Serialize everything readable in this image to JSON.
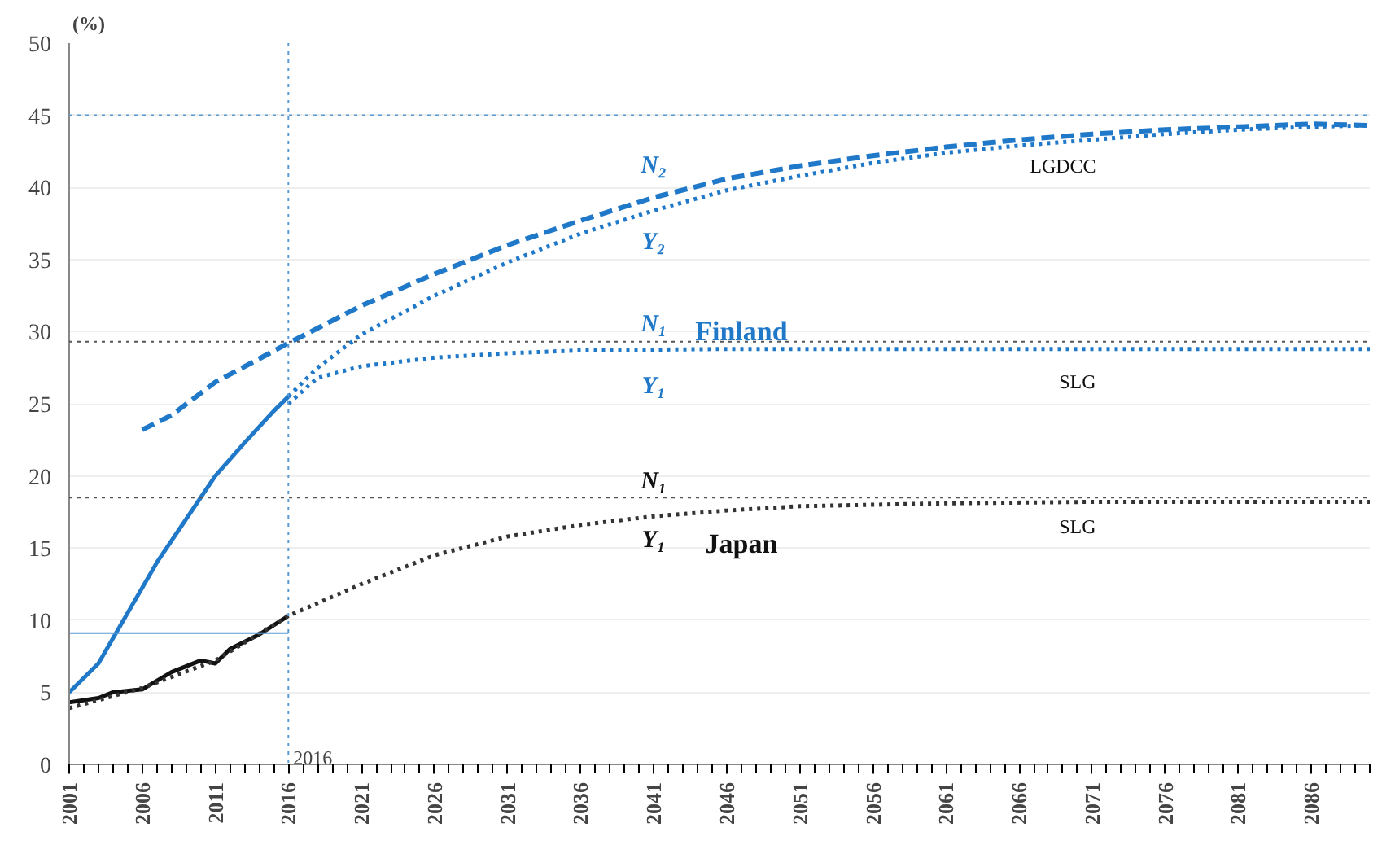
{
  "chart_data": {
    "type": "line",
    "ylabel": "(%)",
    "xlim": [
      2001,
      2090
    ],
    "ylim": [
      0,
      50
    ],
    "xticks": [
      2001,
      2006,
      2011,
      2016,
      2021,
      2026,
      2031,
      2036,
      2041,
      2046,
      2051,
      2056,
      2061,
      2066,
      2071,
      2076,
      2081,
      2086
    ],
    "yticks": [
      0,
      5,
      10,
      15,
      20,
      25,
      30,
      35,
      40,
      45,
      50
    ],
    "grid": "y",
    "series": [
      {
        "color": "#1f78c8",
        "line_style": "solid",
        "x": [
          2001,
          2003,
          2005,
          2007,
          2009,
          2011,
          2013,
          2015,
          2016
        ],
        "values": [
          5.0,
          7.0,
          10.5,
          14.0,
          17.0,
          20.0,
          22.3,
          24.5,
          25.5
        ]
      },
      {
        "color": "#1f78c8",
        "line_style": "dashed",
        "x": [
          2006,
          2008,
          2011,
          2016,
          2021,
          2026,
          2031,
          2036,
          2041,
          2046,
          2051,
          2056,
          2061,
          2066,
          2071,
          2076,
          2081,
          2086,
          2090
        ],
        "values": [
          23.2,
          24.2,
          26.5,
          29.2,
          31.8,
          34.0,
          36.0,
          37.7,
          39.3,
          40.6,
          41.5,
          42.2,
          42.8,
          43.3,
          43.7,
          44.0,
          44.2,
          44.4,
          44.3
        ]
      },
      {
        "color": "#1f78c8",
        "line_style": "dotted",
        "x": [
          2016,
          2018,
          2021,
          2026,
          2031,
          2036,
          2041,
          2046,
          2051,
          2056,
          2061,
          2066,
          2071,
          2076,
          2081,
          2086,
          2090
        ],
        "values": [
          25.5,
          27.5,
          29.8,
          32.5,
          34.8,
          36.8,
          38.4,
          39.8,
          40.8,
          41.7,
          42.4,
          42.9,
          43.3,
          43.7,
          44.0,
          44.2,
          44.3
        ]
      },
      {
        "color": "#1f78c8",
        "line_style": "dotted",
        "x": [
          2016,
          2018,
          2021,
          2026,
          2031,
          2036,
          2046,
          2090
        ],
        "values": [
          25.0,
          26.8,
          27.6,
          28.2,
          28.5,
          28.7,
          28.8,
          28.8
        ]
      },
      {
        "color": "#111111",
        "line_style": "solid",
        "x": [
          2001,
          2003,
          2004,
          2006,
          2008,
          2010,
          2011,
          2012,
          2014,
          2016
        ],
        "values": [
          4.3,
          4.6,
          5.0,
          5.2,
          6.4,
          7.2,
          7.0,
          8.0,
          9.0,
          10.3
        ]
      },
      {
        "color": "#333333",
        "line_style": "dotted",
        "x": [
          2001,
          2006,
          2011,
          2016,
          2021,
          2026,
          2031,
          2036,
          2041,
          2046,
          2051,
          2061,
          2071,
          2090
        ],
        "values": [
          3.9,
          5.3,
          7.2,
          10.3,
          12.5,
          14.5,
          15.8,
          16.6,
          17.2,
          17.6,
          17.9,
          18.1,
          18.2,
          18.2
        ]
      },
      {
        "color": "#5b9bd5",
        "line_style": "solid",
        "x": [
          2001,
          2016
        ],
        "values": [
          9.1,
          9.1
        ]
      }
    ],
    "ref_lines": [
      {
        "axis": "y",
        "value": 45,
        "color": "#5b9bd5",
        "line_style": "dotted"
      },
      {
        "axis": "y",
        "value": 29.3,
        "color": "#555555",
        "line_style": "dotted"
      },
      {
        "axis": "y",
        "value": 18.5,
        "color": "#555555",
        "line_style": "dotted"
      },
      {
        "axis": "x",
        "value": 2016,
        "label": "2016",
        "color": "#5b9bd5",
        "line_style": "dotted"
      }
    ],
    "annotations": [
      "N₂",
      "Y₂",
      "N₁",
      "Y₁",
      "Finland",
      "LGDCC",
      "SLG",
      "N₁",
      "Y₁",
      "Japan",
      "SLG"
    ]
  }
}
